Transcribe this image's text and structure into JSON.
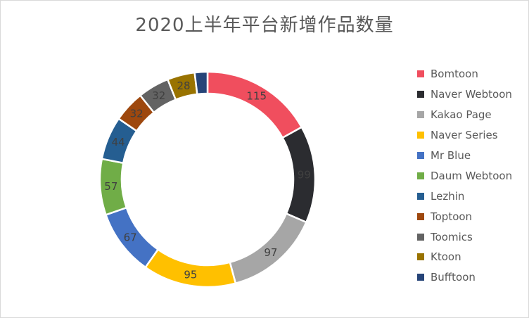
{
  "chart_data": {
    "type": "pie",
    "title": "2020上半年平台新增作品数量",
    "legend": "right",
    "categories": [
      "Bomtoon",
      "Naver Webtoon",
      "Kakao Page",
      "Naver Series",
      "Mr Blue",
      "Daum Webtoon",
      "Lezhin",
      "Toptoon",
      "Toomics",
      "Ktoon",
      "Bufftoon"
    ],
    "values": [
      115,
      99,
      97,
      95,
      67,
      57,
      44,
      32,
      32,
      28,
      13
    ],
    "data_labels": [
      "115",
      "99",
      "97",
      "95",
      "67",
      "57",
      "44",
      "32",
      "32",
      "28",
      ""
    ],
    "colors": [
      "#f04e5e",
      "#2b2c30",
      "#a6a6a6",
      "#ffc000",
      "#4472c4",
      "#70ad47",
      "#255e91",
      "#9e480e",
      "#636363",
      "#997300",
      "#264478"
    ]
  }
}
